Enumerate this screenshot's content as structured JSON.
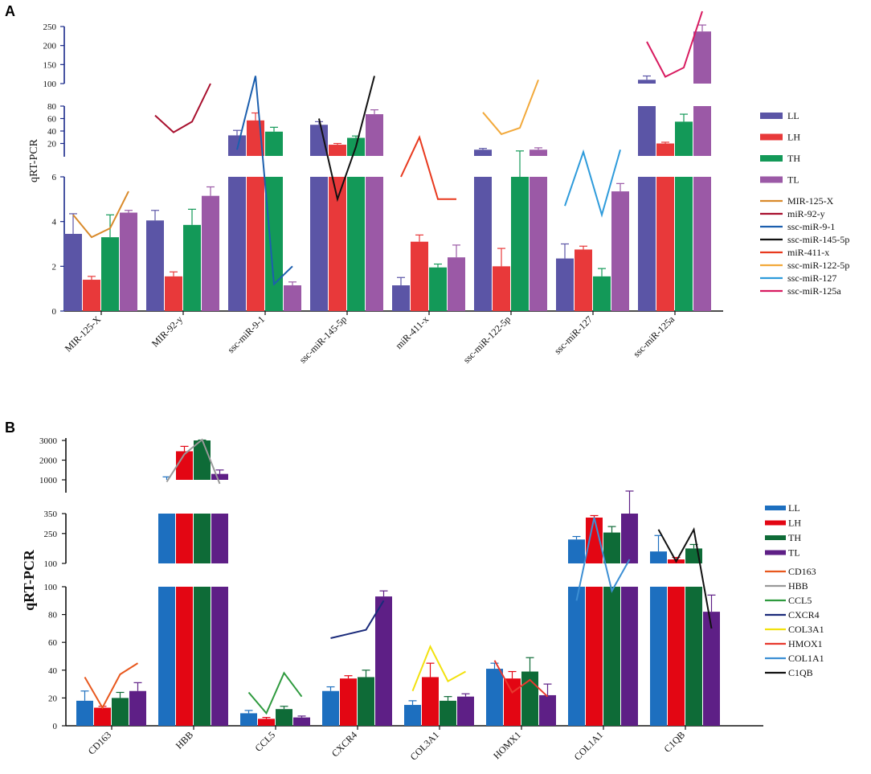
{
  "chart_data": [
    {
      "panel": "A",
      "type": "bar",
      "ylabel": "qRT-PCR",
      "categories": [
        "MIR-125-X",
        "MIR-92-y",
        "ssc-miR-9-1",
        "ssc-miR-145-5p",
        "miR-411-x",
        "ssc-miR-122-5p",
        "ssc-miR-127",
        "ssc-miR-125a"
      ],
      "axis_segments": [
        {
          "ylim": [
            0,
            6
          ],
          "ticks": [
            "0",
            "2",
            "4",
            "6"
          ]
        },
        {
          "ylim": [
            0,
            80
          ],
          "ticks": [
            "20",
            "40",
            "60",
            "80"
          ]
        },
        {
          "ylim": [
            100,
            250
          ],
          "ticks": [
            "100",
            "150",
            "200",
            "250"
          ]
        }
      ],
      "series": [
        {
          "name": "LL",
          "color": "#5B55A6",
          "values": [
            3.45,
            4.05,
            33,
            50,
            1.15,
            10,
            2.35,
            110
          ],
          "errors": [
            0.9,
            0.45,
            8,
            5,
            0.35,
            2,
            0.65,
            10
          ]
        },
        {
          "name": "LH",
          "color": "#E8393A",
          "values": [
            1.4,
            1.55,
            57,
            18,
            3.1,
            2.0,
            2.75,
            20
          ],
          "errors": [
            0.15,
            0.2,
            12,
            2,
            0.3,
            0.8,
            0.15,
            2
          ]
        },
        {
          "name": "TH",
          "color": "#139958",
          "values": [
            3.3,
            3.85,
            39,
            29,
            1.95,
            6,
            1.55,
            55
          ],
          "errors": [
            1.0,
            0.7,
            7,
            3,
            0.15,
            2,
            0.35,
            12
          ]
        },
        {
          "name": "TL",
          "color": "#9B59A6",
          "values": [
            4.4,
            5.15,
            1.15,
            67,
            2.4,
            10,
            5.35,
            237
          ],
          "errors": [
            0.1,
            0.4,
            0.15,
            7,
            0.55,
            3,
            0.35,
            17
          ]
        }
      ],
      "line_series": [
        {
          "name": "MIR-125-X",
          "color": "#D98A2B",
          "category": "MIR-125-X",
          "values": [
            4.3,
            3.3,
            3.7,
            5.35
          ]
        },
        {
          "name": "miR-92-y",
          "color": "#A8102E",
          "category": "MIR-92-y",
          "values": [
            65,
            38,
            55,
            100
          ]
        },
        {
          "name": "ssc-miR-9-1",
          "color": "#1C5FAE",
          "category": "ssc-miR-9-1",
          "values": [
            10,
            120,
            1.2,
            2.0
          ]
        },
        {
          "name": "ssc-miR-145-5p",
          "color": "#111111",
          "category": "ssc-miR-145-5p",
          "values": [
            60,
            5,
            15,
            120
          ]
        },
        {
          "name": "miR-411-x",
          "color": "#E8391E",
          "category": "miR-411-x",
          "values": [
            6,
            30,
            5,
            5
          ]
        },
        {
          "name": "ssc-miR-122-5p",
          "color": "#F2A93B",
          "category": "ssc-miR-122-5p",
          "values": [
            70,
            35,
            45,
            110
          ]
        },
        {
          "name": "ssc-miR-127",
          "color": "#2E9BDB",
          "category": "ssc-miR-127",
          "values": [
            4.7,
            6.3,
            4.3,
            10
          ]
        },
        {
          "name": "ssc-miR-125a",
          "color": "#D81B60",
          "category": "ssc-miR-125a",
          "values": [
            210,
            118,
            142,
            298
          ]
        }
      ]
    },
    {
      "panel": "B",
      "type": "bar",
      "ylabel": "qRT-PCR",
      "categories": [
        "CD163",
        "HBB",
        "CCL5",
        "CXCR4",
        "COL3A1",
        "HOMX1",
        "COL1A1",
        "C1QB"
      ],
      "axis_segments": [
        {
          "ylim": [
            0,
            100
          ],
          "ticks": [
            "0",
            "20",
            "40",
            "60",
            "80",
            "100"
          ]
        },
        {
          "ylim": [
            100,
            350
          ],
          "ticks": [
            "100",
            "250",
            "350"
          ]
        },
        {
          "ylim": [
            1000,
            3000
          ],
          "ticks": [
            "1000",
            "2000",
            "3000"
          ]
        }
      ],
      "series": [
        {
          "name": "LL",
          "color": "#1D6FBF",
          "values": [
            18,
            1000,
            9,
            25,
            15,
            41,
            220,
            160
          ],
          "errors": [
            7,
            150,
            2,
            3,
            3,
            4,
            15,
            80
          ]
        },
        {
          "name": "LH",
          "color": "#E30613",
          "values": [
            13,
            2450,
            5,
            34,
            35,
            34,
            330,
            120
          ],
          "errors": [
            1,
            250,
            1,
            2,
            10,
            5,
            10,
            10
          ]
        },
        {
          "name": "TH",
          "color": "#0E6B37",
          "values": [
            20,
            3250,
            12,
            35,
            18,
            39,
            255,
            175
          ],
          "errors": [
            4,
            300,
            2,
            5,
            3,
            10,
            30,
            20
          ]
        },
        {
          "name": "TL",
          "color": "#5E1F86",
          "values": [
            25,
            1300,
            6,
            93,
            21,
            22,
            350,
            82
          ],
          "errors": [
            6,
            200,
            1,
            4,
            2,
            8,
            80,
            12
          ]
        }
      ],
      "line_series": [
        {
          "name": "CD163",
          "color": "#E8581E",
          "category": "CD163",
          "values": [
            35,
            13,
            37,
            45
          ]
        },
        {
          "name": "HBB",
          "color": "#999999",
          "category": "HBB",
          "values": [
            900,
            2300,
            3200,
            800
          ]
        },
        {
          "name": "CCL5",
          "color": "#2E9A3E",
          "category": "CCL5",
          "values": [
            24,
            9,
            38,
            21
          ]
        },
        {
          "name": "CXCR4",
          "color": "#1A2A7A",
          "category": "CXCR4",
          "values": [
            63,
            66,
            69,
            90
          ]
        },
        {
          "name": "COL3A1",
          "color": "#F2E10E",
          "category": "COL3A1",
          "values": [
            25,
            57,
            32,
            39
          ]
        },
        {
          "name": "HMOX1",
          "color": "#E8392E",
          "category": "HOMX1",
          "values": [
            47,
            24,
            33,
            21
          ]
        },
        {
          "name": "COL1A1",
          "color": "#3C8FD4",
          "category": "COL1A1",
          "values": [
            90,
            330,
            97,
            120
          ]
        },
        {
          "name": "C1QB",
          "color": "#111111",
          "category": "C1QB",
          "values": [
            270,
            110,
            270,
            70
          ]
        }
      ]
    }
  ],
  "panels": {
    "A": {
      "label": "A"
    },
    "B": {
      "label": "B"
    }
  }
}
